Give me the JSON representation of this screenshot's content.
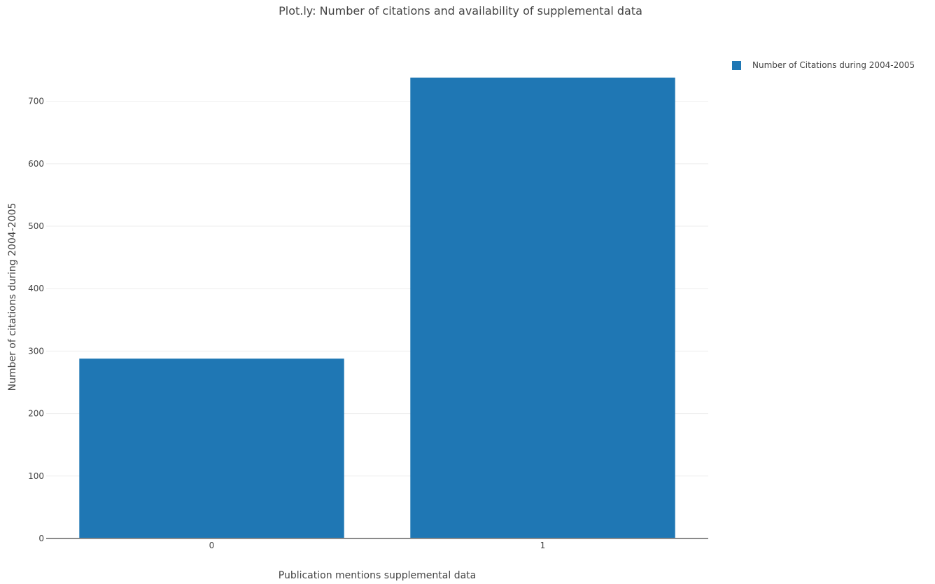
{
  "chart_data": {
    "type": "bar",
    "title": "Plot.ly: Number of citations and availability of supplemental data",
    "xlabel": "Publication mentions supplemental data",
    "ylabel": "Number of citations during 2004-2005",
    "categories": [
      "0",
      "1"
    ],
    "series": [
      {
        "name": "Number of Citations during 2004-2005",
        "values": [
          288,
          738
        ],
        "color": "#1f77b4"
      }
    ],
    "ylim": [
      0,
      740
    ],
    "yticks": [
      0,
      100,
      200,
      300,
      400,
      500,
      600,
      700
    ],
    "grid": true,
    "legend_position": "top-right"
  }
}
